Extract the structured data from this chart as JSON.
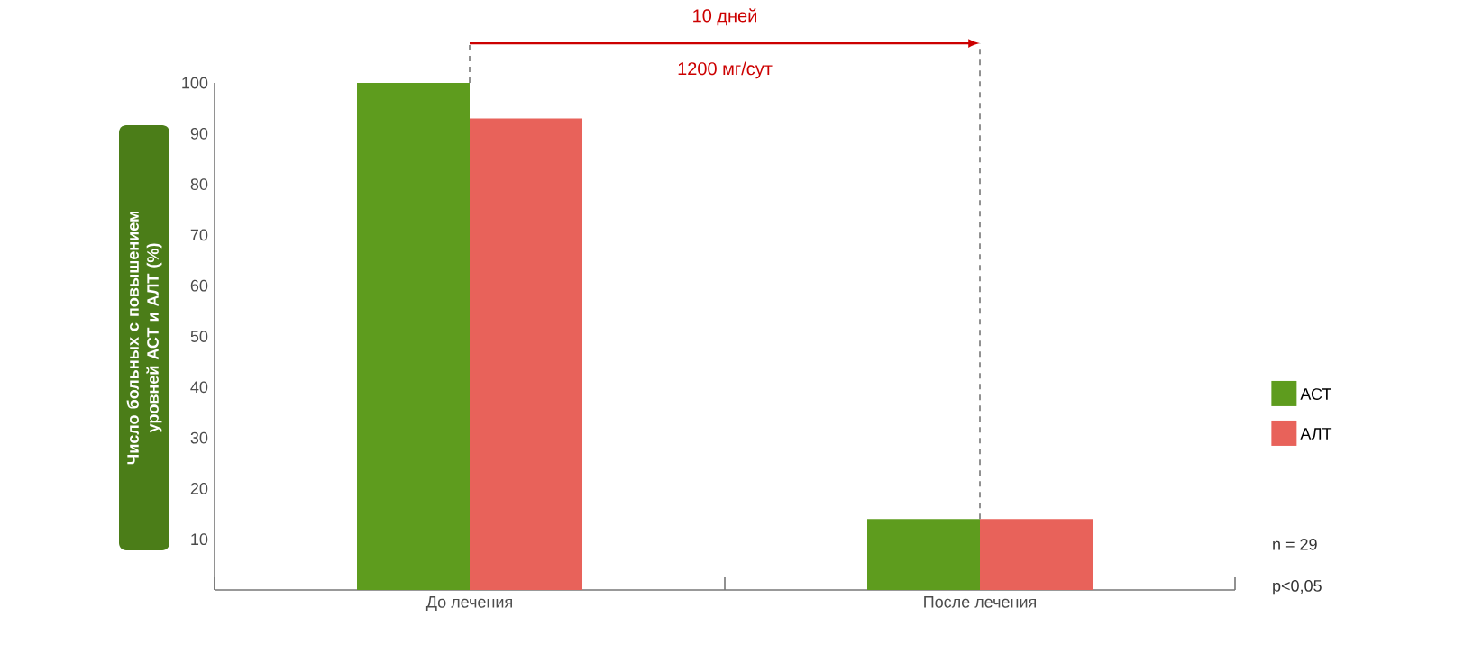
{
  "chart_data": {
    "type": "bar",
    "ylabel": "Число больных с повышением уровней АСТ и АЛТ (%)",
    "categories": [
      "До лечения",
      "После лечения"
    ],
    "series": [
      {
        "name": "АСТ",
        "color": "#5e9c1e",
        "values": [
          100,
          14
        ]
      },
      {
        "name": "АЛТ",
        "color": "#e8625a",
        "values": [
          93,
          14
        ]
      }
    ],
    "ylim": [
      0,
      100
    ],
    "yticks": [
      10,
      20,
      30,
      40,
      50,
      60,
      70,
      80,
      90,
      100
    ],
    "legend": "right",
    "annotations": [
      "10 дней",
      "1200 мг/сут",
      "n = 29",
      "p<0,05"
    ]
  }
}
